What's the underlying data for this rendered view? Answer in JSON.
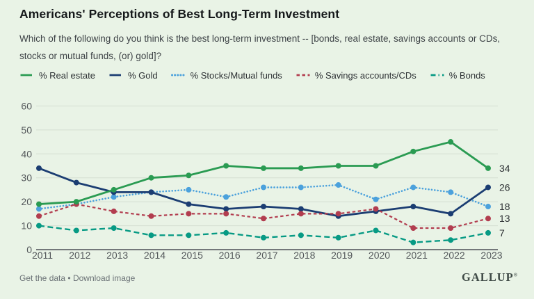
{
  "header": {
    "title": "Americans' Perceptions of Best Long-Term Investment",
    "subtitle": "Which of the following do you think is the best long-term investment -- [bonds, real estate, savings accounts or CDs, stocks or mutual funds, (or) gold]?"
  },
  "legend": [
    {
      "label": "% Real estate",
      "color": "#2a9b52",
      "style": "solid"
    },
    {
      "label": "% Gold",
      "color": "#1b3d72",
      "style": "solid"
    },
    {
      "label": "% Stocks/Mutual funds",
      "color": "#4ba1dc",
      "style": "dotted"
    },
    {
      "label": "% Savings accounts/CDs",
      "color": "#b23d4f",
      "style": "short-dash"
    },
    {
      "label": "% Bonds",
      "color": "#079a84",
      "style": "dash-dot"
    }
  ],
  "chart_data": {
    "type": "line",
    "x": [
      2011,
      2012,
      2013,
      2014,
      2015,
      2016,
      2017,
      2018,
      2019,
      2020,
      2021,
      2022,
      2023
    ],
    "series": [
      {
        "name": "% Real estate",
        "color": "#2a9b52",
        "style": "solid",
        "values": [
          19,
          20,
          25,
          30,
          31,
          35,
          34,
          34,
          35,
          35,
          41,
          45,
          34
        ],
        "end_label": "34"
      },
      {
        "name": "% Gold",
        "color": "#1b3d72",
        "style": "solid",
        "values": [
          34,
          28,
          24,
          24,
          19,
          17,
          18,
          17,
          14,
          16,
          18,
          15,
          26
        ],
        "end_label": "26"
      },
      {
        "name": "% Stocks/Mutual funds",
        "color": "#4ba1dc",
        "style": "dotted",
        "values": [
          17,
          19,
          22,
          24,
          25,
          22,
          26,
          26,
          27,
          21,
          26,
          24,
          18
        ],
        "end_label": "18"
      },
      {
        "name": "% Savings accounts/CDs",
        "color": "#b23d4f",
        "style": "short-dash",
        "values": [
          14,
          19,
          16,
          14,
          15,
          15,
          13,
          15,
          15,
          17,
          9,
          9,
          13
        ],
        "end_label": "13"
      },
      {
        "name": "% Bonds",
        "color": "#079a84",
        "style": "dash-dot",
        "values": [
          10,
          8,
          9,
          6,
          6,
          7,
          5,
          6,
          5,
          8,
          3,
          4,
          7
        ],
        "end_label": "7"
      }
    ],
    "ylim": [
      0,
      60
    ],
    "yticks": [
      0,
      10,
      20,
      30,
      40,
      50,
      60
    ],
    "grid": true,
    "legend_position": "top",
    "colors": {
      "gridline": "#d5dfd2",
      "axis_line": "#73777a",
      "tick_text": "#54585b",
      "end_label_text": "#2f3336"
    }
  },
  "footer": {
    "links": [
      "Get the data",
      "Download image"
    ],
    "separator": "•",
    "brand": "GALLUP",
    "brand_mark": "®"
  }
}
